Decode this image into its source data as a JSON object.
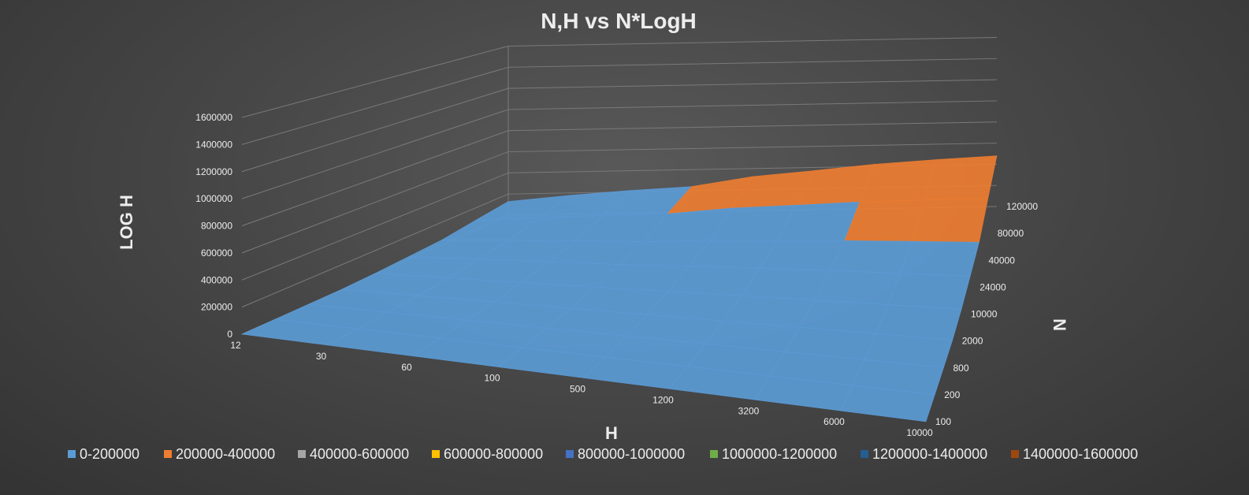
{
  "chart_data": {
    "type": "surface",
    "title": "N,H vs N*LogH",
    "xlabel": "H",
    "ylabel": "N",
    "zlabel": "LOG H",
    "x": [
      "12",
      "30",
      "60",
      "100",
      "500",
      "1200",
      "3200",
      "6000",
      "10000"
    ],
    "y": [
      "100",
      "200",
      "800",
      "2000",
      "10000",
      "24000",
      "40000",
      "80000",
      "120000"
    ],
    "z_ticks": [
      "0",
      "200000",
      "400000",
      "600000",
      "800000",
      "1000000",
      "1200000",
      "1400000",
      "1600000"
    ],
    "zlim": [
      0,
      1600000
    ],
    "z_formula": "N * log10(H)",
    "values": [
      [
        108,
        148,
        178,
        200,
        270,
        308,
        351,
        378,
        400
      ],
      [
        216,
        295,
        356,
        400,
        540,
        616,
        702,
        756,
        800
      ],
      [
        863,
        1182,
        1422,
        1600,
        2159,
        2463,
        2808,
        3023,
        3200
      ],
      [
        2158,
        2954,
        3556,
        4000,
        5398,
        6158,
        7010,
        7556,
        8000
      ],
      [
        10792,
        14771,
        17782,
        20000,
        26990,
        30792,
        35051,
        37782,
        40000
      ],
      [
        25900,
        35451,
        42676,
        48000,
        64776,
        73900,
        84122,
        90676,
        96000
      ],
      [
        43167,
        59085,
        71127,
        80000,
        107959,
        123167,
        140203,
        151127,
        160000
      ],
      [
        86334,
        118170,
        142255,
        160000,
        215918,
        246334,
        280406,
        302255,
        320000
      ],
      [
        129502,
        177255,
        213382,
        240000,
        323876,
        369502,
        420609,
        453382,
        480000
      ]
    ],
    "legend": [
      {
        "label": "0-200000",
        "color": "#5b9bd5"
      },
      {
        "label": "200000-400000",
        "color": "#ed7d31"
      },
      {
        "label": "400000-600000",
        "color": "#a5a5a5"
      },
      {
        "label": "600000-800000",
        "color": "#ffc000"
      },
      {
        "label": "800000-1000000",
        "color": "#4472c4"
      },
      {
        "label": "1000000-1200000",
        "color": "#70ad47"
      },
      {
        "label": "1200000-1400000",
        "color": "#255e91"
      },
      {
        "label": "1400000-1600000",
        "color": "#9e480e"
      }
    ],
    "legend_position": "bottom"
  }
}
